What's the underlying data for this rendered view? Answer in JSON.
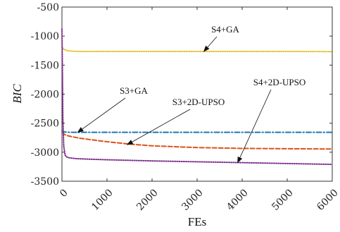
{
  "chart_data": {
    "type": "line",
    "title": "",
    "xlabel": "FEs",
    "ylabel": "BIC",
    "xlim": [
      0,
      6000
    ],
    "ylim": [
      -3500,
      -500
    ],
    "x_ticks": [
      "0",
      "1000",
      "2000",
      "3000",
      "4000",
      "5000",
      "6000"
    ],
    "y_ticks": [
      "-500",
      "-1000",
      "-1500",
      "-2000",
      "-2500",
      "-3000",
      "-3500"
    ],
    "grid": false,
    "legend": "none",
    "series": [
      {
        "name": "S4+GA",
        "color": "#e8c230",
        "dash": "dotted",
        "x": [
          0,
          20,
          50,
          100,
          150,
          250,
          400,
          600,
          1000,
          2000,
          3000,
          4000,
          5000,
          6000
        ],
        "y": [
          -1180,
          -1210,
          -1230,
          -1245,
          -1255,
          -1262,
          -1265,
          -1265,
          -1265,
          -1265,
          -1265,
          -1265,
          -1265,
          -1268
        ]
      },
      {
        "name": "S3+GA",
        "color": "#1f77b4",
        "dash": "dashdot",
        "x": [
          0,
          20,
          50,
          100,
          200,
          500,
          1000,
          2000,
          3000,
          4000,
          5000,
          6000
        ],
        "y": [
          -2620,
          -2640,
          -2650,
          -2655,
          -2658,
          -2658,
          -2658,
          -2658,
          -2658,
          -2658,
          -2658,
          -2658
        ]
      },
      {
        "name": "S3+2D-UPSO",
        "color": "#d95319",
        "dash": "dashed",
        "x": [
          0,
          50,
          100,
          200,
          400,
          700,
          1000,
          1500,
          2000,
          3000,
          4000,
          5000,
          6000
        ],
        "y": [
          -2660,
          -2690,
          -2710,
          -2730,
          -2760,
          -2790,
          -2820,
          -2860,
          -2890,
          -2920,
          -2935,
          -2940,
          -2945
        ]
      },
      {
        "name": "S4+2D-UPSO",
        "color": "#7e2f8e",
        "dash": "dotted",
        "x": [
          0,
          10,
          20,
          40,
          70,
          100,
          150,
          300,
          600,
          1000,
          2000,
          3000,
          4000,
          5000,
          6000
        ],
        "y": [
          -880,
          -1500,
          -2400,
          -2900,
          -3050,
          -3080,
          -3095,
          -3110,
          -3120,
          -3130,
          -3150,
          -3165,
          -3180,
          -3195,
          -3210
        ]
      }
    ],
    "annotations": [
      {
        "text": "S4+GA",
        "series": "S4+GA",
        "point_x": 3150,
        "point_y": -1265
      },
      {
        "text": "S3+GA",
        "series": "S3+GA",
        "point_x": 350,
        "point_y": -2658
      },
      {
        "text": "S3+2D-UPSO",
        "series": "S3+2D-UPSO",
        "point_x": 1450,
        "point_y": -2870
      },
      {
        "text": "S4+2D-UPSO",
        "series": "S4+2D-UPSO",
        "point_x": 3900,
        "point_y": -3180
      }
    ]
  }
}
